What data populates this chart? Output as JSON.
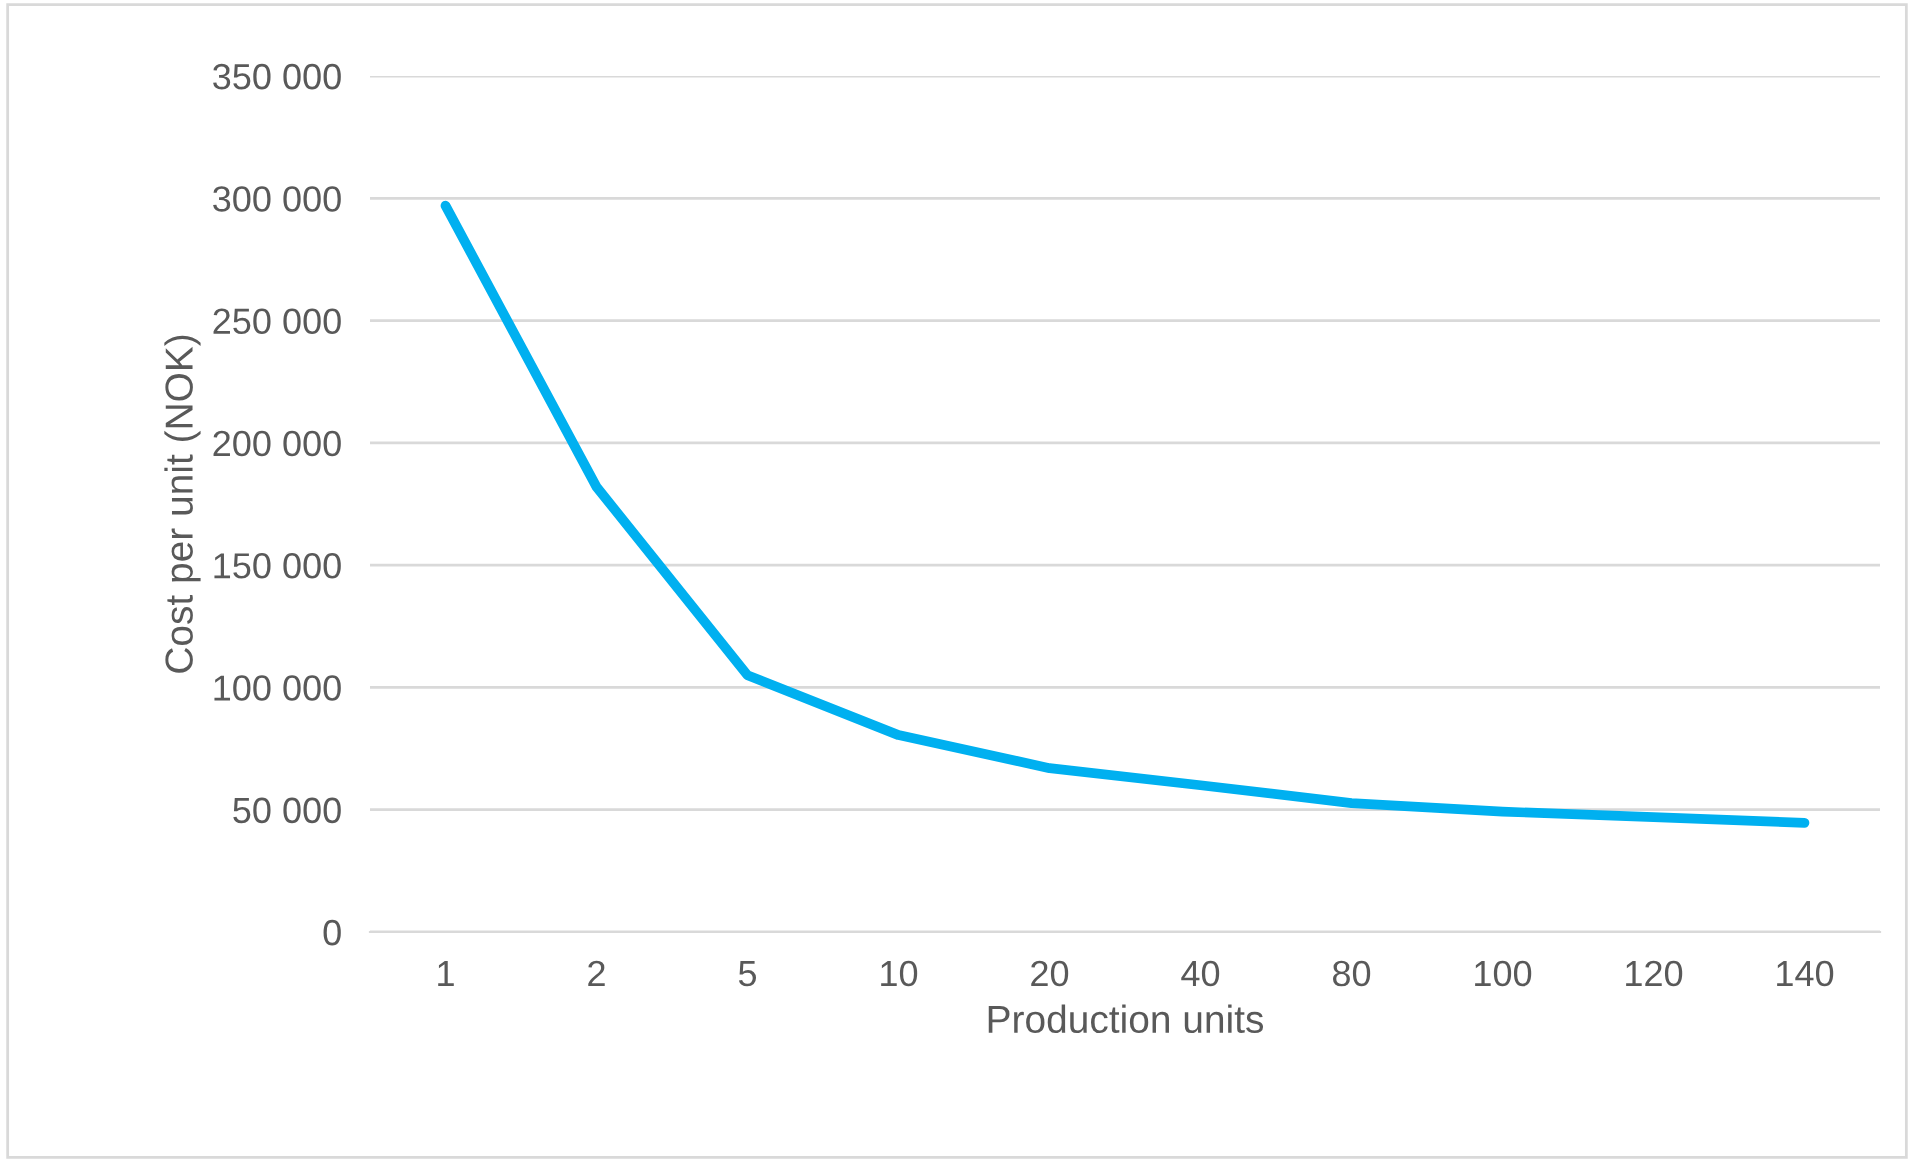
{
  "chart_data": {
    "type": "line",
    "xlabel": "Production units",
    "ylabel": "Cost per unit (NOK)",
    "categories": [
      "1",
      "2",
      "5",
      "10",
      "20",
      "40",
      "80",
      "100",
      "120",
      "140"
    ],
    "series": [
      {
        "color": "#00b0f0",
        "values": [
          297000,
          182000,
          105000,
          80500,
          67000,
          60000,
          52700,
          49200,
          47000,
          44600
        ]
      }
    ],
    "ylim": [
      0,
      350000
    ],
    "yticks": [
      {
        "value": 0,
        "label": "0"
      },
      {
        "value": 50000,
        "label": "50 000"
      },
      {
        "value": 100000,
        "label": "100 000"
      },
      {
        "value": 150000,
        "label": "150 000"
      },
      {
        "value": 200000,
        "label": "200 000"
      },
      {
        "value": 250000,
        "label": "250 000"
      },
      {
        "value": 300000,
        "label": "300 000"
      },
      {
        "value": 350000,
        "label": "350 000"
      }
    ],
    "grid": "y",
    "marker": "none",
    "line_style": "solid"
  }
}
